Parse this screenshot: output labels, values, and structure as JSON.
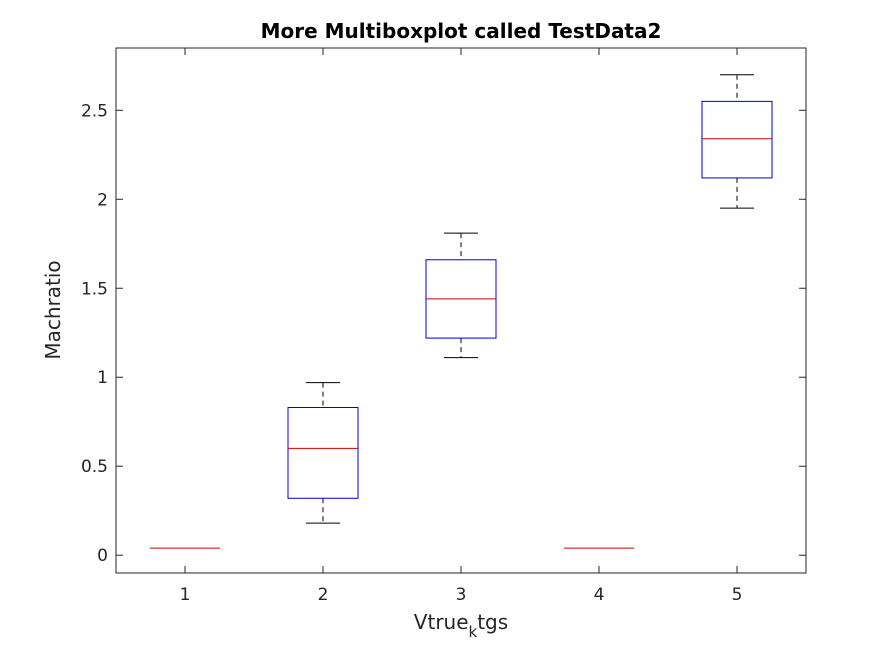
{
  "chart_data": {
    "type": "boxplot",
    "title": "More Multiboxplot called TestData2",
    "xlabel": "Vtrue",
    "xlabel_subscript": "k",
    "xlabel_suffix": "tgs",
    "ylabel": "Machratio",
    "categories": [
      "1",
      "2",
      "3",
      "4",
      "5"
    ],
    "xlim": [
      0.5,
      5.5
    ],
    "ylim": [
      -0.1,
      2.85
    ],
    "yticks": [
      0,
      0.5,
      1,
      1.5,
      2,
      2.5
    ],
    "ytick_labels": [
      "0",
      "0.5",
      "1",
      "1.5",
      "2",
      "2.5"
    ],
    "grid": false,
    "boxes": [
      {
        "category": "1",
        "min": 0.04,
        "q1": 0.04,
        "median": 0.04,
        "q3": 0.04,
        "max": 0.04
      },
      {
        "category": "2",
        "min": 0.18,
        "q1": 0.32,
        "median": 0.6,
        "q3": 0.83,
        "max": 0.97
      },
      {
        "category": "3",
        "min": 1.11,
        "q1": 1.22,
        "median": 1.44,
        "q3": 1.66,
        "max": 1.81
      },
      {
        "category": "4",
        "min": 0.04,
        "q1": 0.04,
        "median": 0.04,
        "q3": 0.04,
        "max": 0.04
      },
      {
        "category": "5",
        "min": 1.95,
        "q1": 2.12,
        "median": 2.34,
        "q3": 2.55,
        "max": 2.7
      }
    ],
    "colors": {
      "box": "#0000cc",
      "median": "#cc0000",
      "whisker": "#000000",
      "axis": "#262626"
    }
  }
}
